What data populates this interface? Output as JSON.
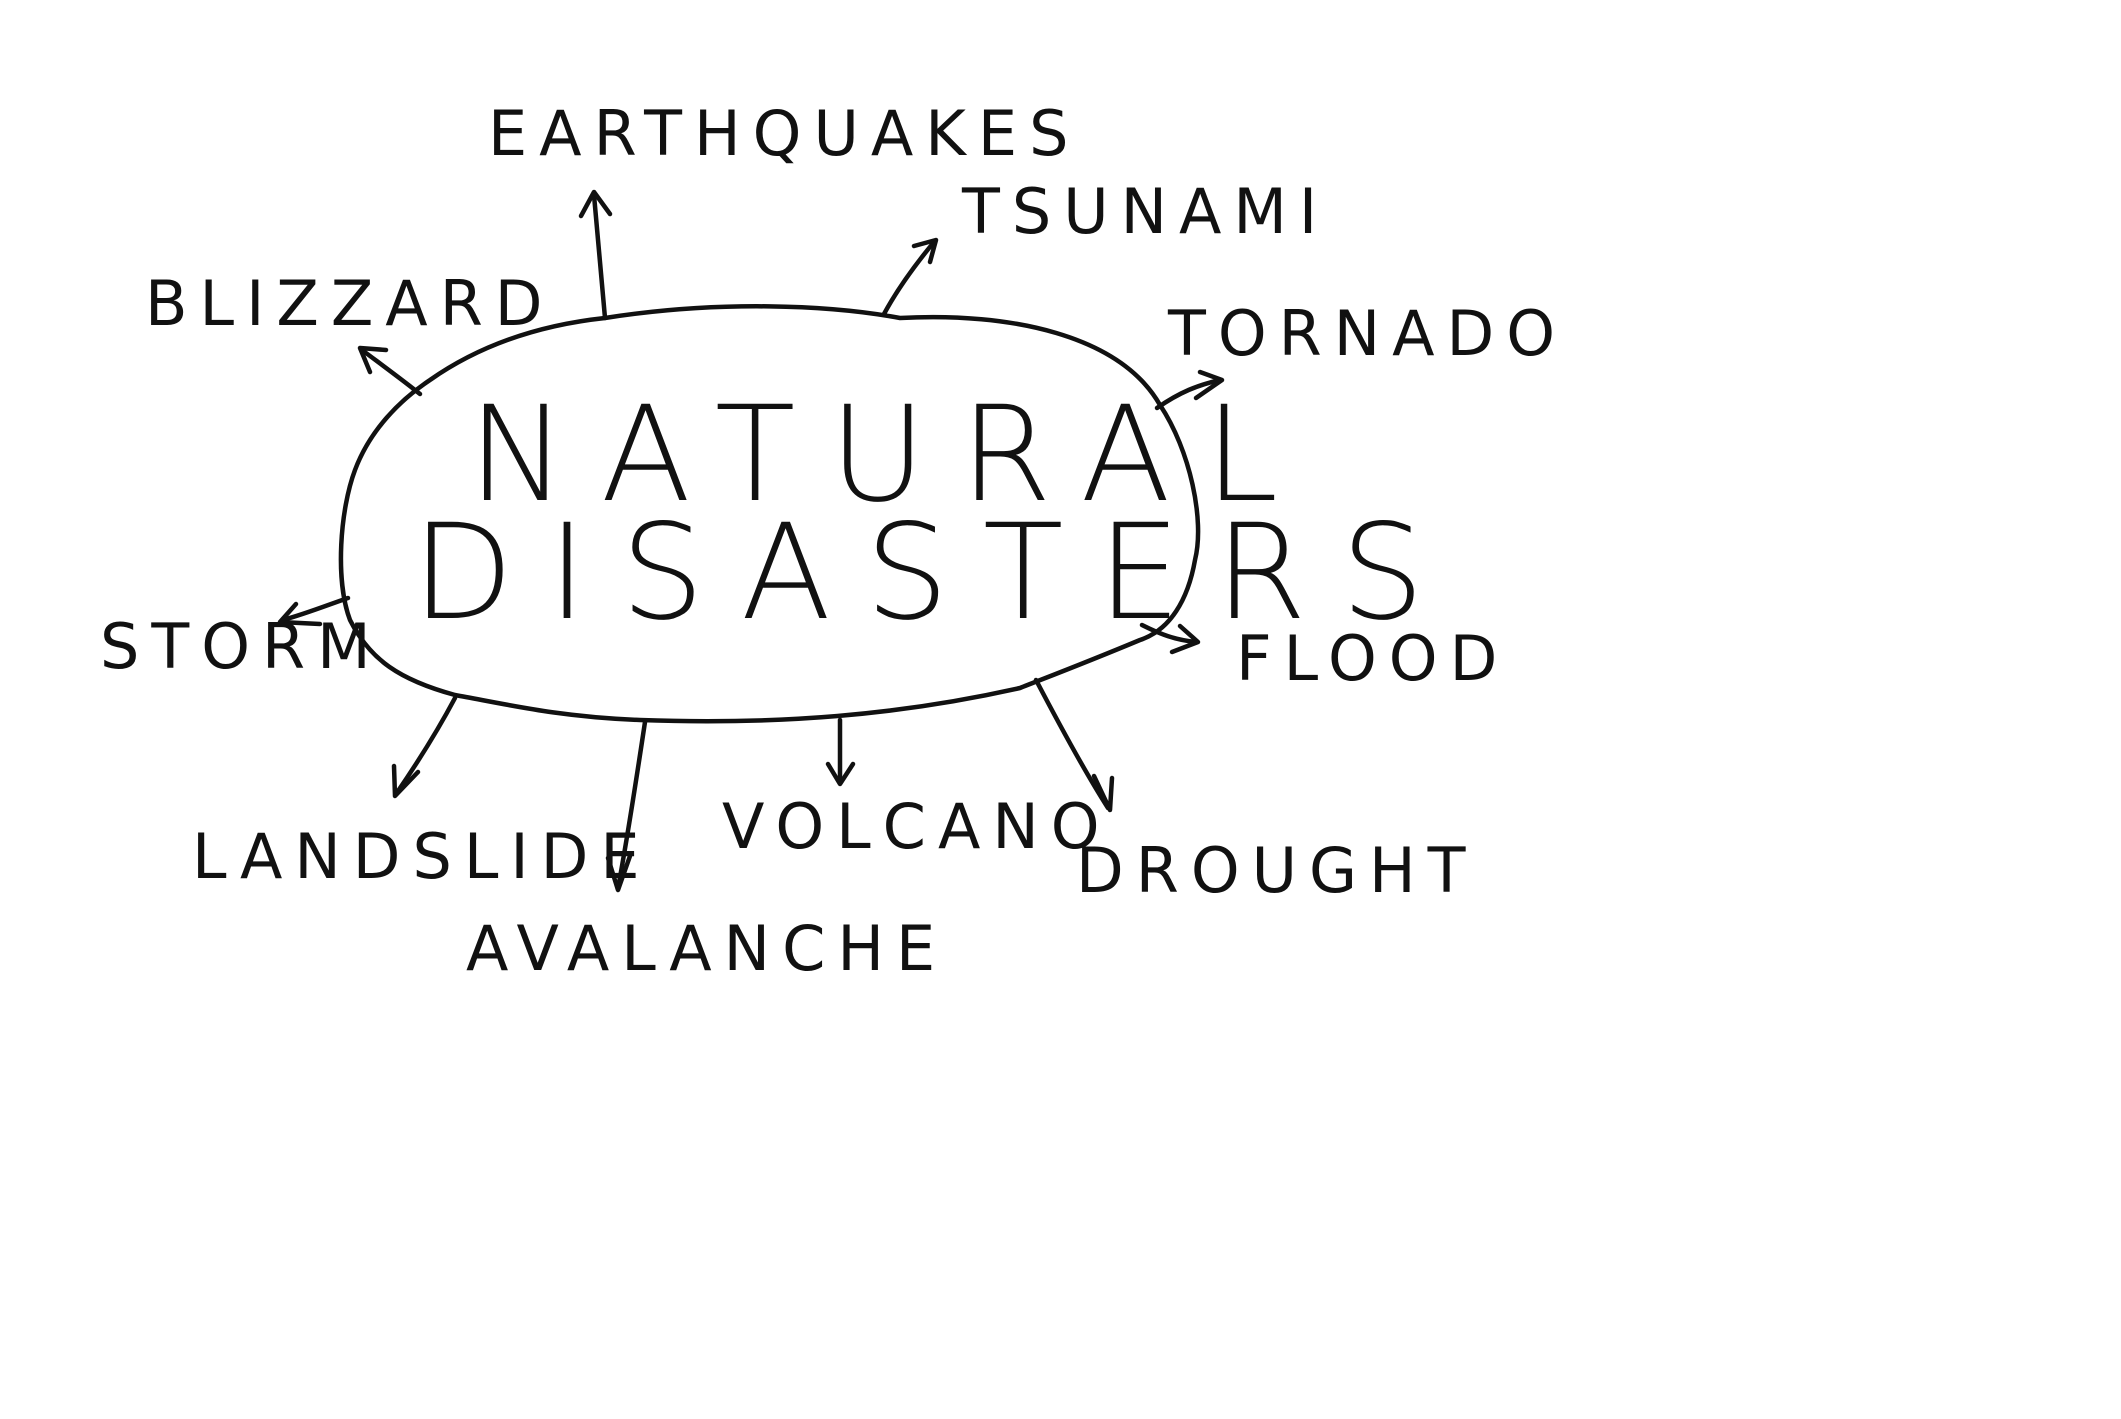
{
  "diagram": {
    "center": {
      "line1": "NATURAL",
      "line2": "DISASTERS"
    },
    "items": {
      "earthquakes": "EARTHQUAKES",
      "tsunami": "TSUNAMI",
      "blizzard": "BLIZZARD",
      "tornado": "TORNADO",
      "storm": "STORM",
      "flood": "FLOOD",
      "landslide": "LANDSLIDE",
      "avalanche": "AVALANCHE",
      "volcano": "VOLCANO",
      "drought": "DROUGHT"
    }
  },
  "colors": {
    "ink": "#111111",
    "paper": "#ffffff"
  }
}
